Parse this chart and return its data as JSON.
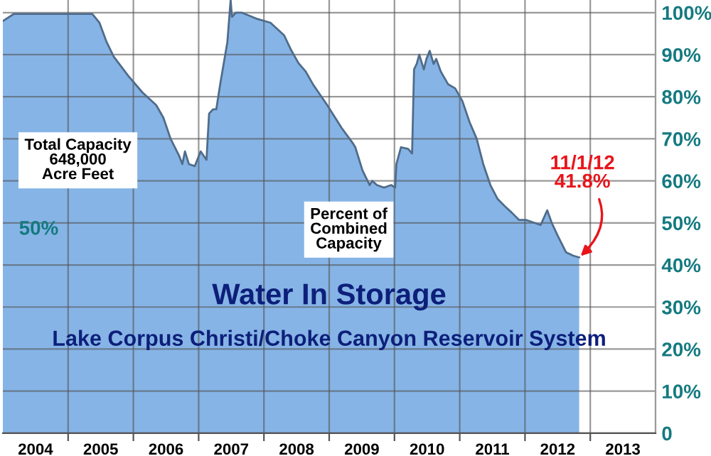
{
  "chart_data": {
    "type": "area",
    "title": "Water In Storage",
    "subtitle": "Lake Corpus Christi/Choke Canyon Reservoir System",
    "annotations": [
      "Total Capacity\n648,000\nAcre Feet",
      "50%",
      "Percent of\nCombined\nCapacity",
      {
        "text": "11/1/12\n41.8%",
        "x": 2012.83,
        "y": 41.8
      }
    ],
    "series": [
      {
        "color": "#86b4e6",
        "x": [
          2004.0,
          2004.17,
          2005.37,
          2005.48,
          2005.59,
          2005.7,
          2005.92,
          2006.14,
          2006.35,
          2006.46,
          2006.57,
          2006.7,
          2006.75,
          2006.79,
          2006.85,
          2006.94,
          2007.03,
          2007.12,
          2007.16,
          2007.22,
          2007.27,
          2007.33,
          2007.44,
          2007.49,
          2007.51,
          2007.57,
          2007.66,
          2007.88,
          2008.1,
          2008.31,
          2008.42,
          2008.53,
          2008.64,
          2008.75,
          2008.97,
          2009.19,
          2009.36,
          2009.4,
          2009.51,
          2009.62,
          2009.66,
          2009.73,
          2009.84,
          2009.95,
          2010.01,
          2010.03,
          2010.1,
          2010.21,
          2010.27,
          2010.3,
          2010.34,
          2010.38,
          2010.45,
          2010.49,
          2010.54,
          2010.6,
          2010.64,
          2010.71,
          2010.82,
          2010.93,
          2011.04,
          2011.15,
          2011.26,
          2011.36,
          2011.47,
          2011.58,
          2011.69,
          2011.8,
          2011.91,
          2012.02,
          2012.24,
          2012.34,
          2012.41,
          2012.5,
          2012.63,
          2012.74,
          2012.83
        ],
        "values": [
          98,
          99.7,
          99.7,
          97.6,
          93,
          89.5,
          85,
          81,
          78,
          75,
          70,
          66,
          64,
          67,
          64,
          63.5,
          67,
          65,
          76,
          77,
          77,
          83,
          93,
          103,
          99,
          100,
          100,
          98.6,
          97.6,
          94.6,
          91,
          88,
          86,
          83,
          78,
          72.6,
          69,
          68,
          62.5,
          59,
          60,
          59,
          58.4,
          59,
          58.4,
          64,
          68,
          67.6,
          66.5,
          86.5,
          87.8,
          90,
          86.5,
          89,
          90.9,
          87.8,
          89,
          86,
          83,
          82,
          79,
          74,
          70,
          64,
          59,
          55.7,
          54,
          52.4,
          50.7,
          50.7,
          49.5,
          53,
          50,
          47,
          43,
          42.2,
          41.8
        ]
      }
    ],
    "xlim": [
      2004,
      2014
    ],
    "xticks": [
      {
        "value": 2004.5,
        "label": "2004"
      },
      {
        "value": 2005,
        "label": null
      },
      {
        "value": 2005.5,
        "label": "2005"
      },
      {
        "value": 2006,
        "label": null
      },
      {
        "value": 2006.5,
        "label": "2006"
      },
      {
        "value": 2007,
        "label": null
      },
      {
        "value": 2007.5,
        "label": "2007"
      },
      {
        "value": 2008,
        "label": null
      },
      {
        "value": 2008.5,
        "label": "2008"
      },
      {
        "value": 2009,
        "label": null
      },
      {
        "value": 2009.5,
        "label": "2009"
      },
      {
        "value": 2010,
        "label": null
      },
      {
        "value": 2010.5,
        "label": "2010"
      },
      {
        "value": 2011,
        "label": null
      },
      {
        "value": 2011.5,
        "label": "2011"
      },
      {
        "value": 2012,
        "label": null
      },
      {
        "value": 2012.5,
        "label": "2012"
      },
      {
        "value": 2013,
        "label": null
      },
      {
        "value": 2013.5,
        "label": "2013"
      }
    ],
    "ylim": [
      0,
      103
    ],
    "yticks": [
      {
        "value": 0,
        "label": "0"
      },
      {
        "value": 10,
        "label": "10%"
      },
      {
        "value": 20,
        "label": "20%"
      },
      {
        "value": 30,
        "label": "30%"
      },
      {
        "value": 40,
        "label": "40%"
      },
      {
        "value": 50,
        "label": "50%"
      },
      {
        "value": 60,
        "label": "60%"
      },
      {
        "value": 70,
        "label": "70%"
      },
      {
        "value": 80,
        "label": "80%"
      },
      {
        "value": 90,
        "label": "90%"
      },
      {
        "value": 100,
        "label": "100%"
      }
    ],
    "grid": true,
    "legend": false
  }
}
